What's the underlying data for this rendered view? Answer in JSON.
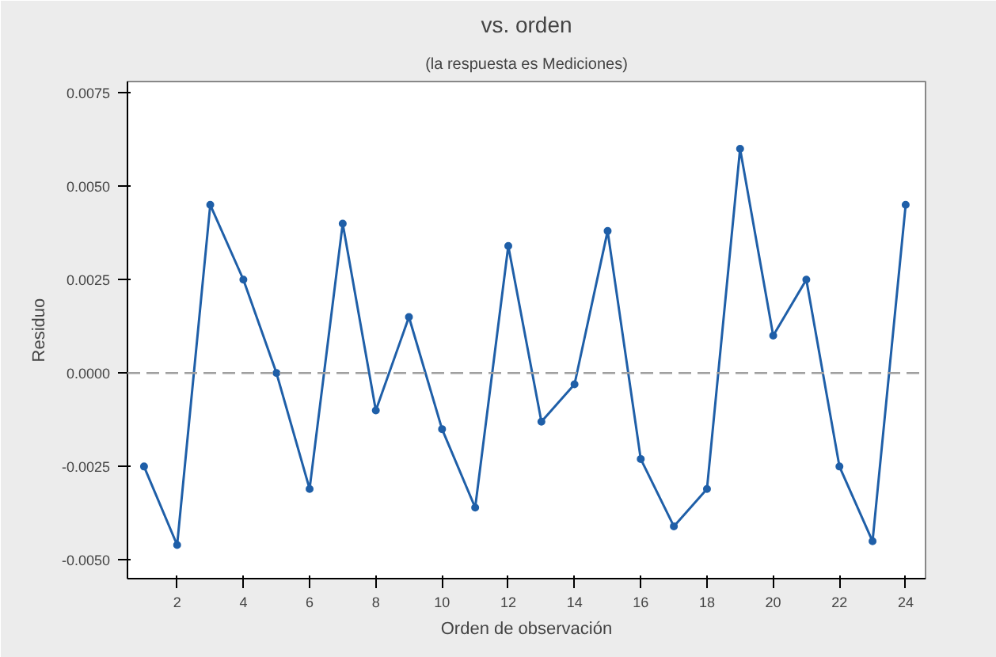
{
  "chart_data": {
    "type": "line",
    "title": "vs. orden",
    "subtitle": "(la respuesta es Mediciones)",
    "xlabel": "Orden de observación",
    "ylabel": "Residuo",
    "x": [
      1,
      2,
      3,
      4,
      5,
      6,
      7,
      8,
      9,
      10,
      11,
      12,
      13,
      14,
      15,
      16,
      17,
      18,
      19,
      20,
      21,
      22,
      23,
      24
    ],
    "series": [
      {
        "color": "#1f5fa8",
        "values": [
          -0.0025,
          -0.0046,
          0.0045,
          0.0025,
          0.0,
          -0.0031,
          0.004,
          -0.001,
          0.0015,
          -0.0015,
          -0.0036,
          0.0034,
          -0.0013,
          -0.0003,
          0.0038,
          -0.0023,
          -0.0041,
          -0.0031,
          0.006,
          0.001,
          0.0025,
          -0.0025,
          -0.0045,
          0.0045
        ]
      }
    ],
    "xlim": [
      0.5,
      24.6
    ],
    "xticks": [
      2,
      4,
      6,
      8,
      10,
      12,
      14,
      16,
      18,
      20,
      22,
      24
    ],
    "ylim": [
      -0.0055,
      0.0078
    ],
    "yticks": [
      {
        "value": -0.005,
        "label": "-0.0050"
      },
      {
        "value": -0.0025,
        "label": "-0.0025"
      },
      {
        "value": 0,
        "label": "0.0000"
      },
      {
        "value": 0.0025,
        "label": "0.0025"
      },
      {
        "value": 0.005,
        "label": "0.0050"
      },
      {
        "value": 0.0075,
        "label": "0.0075"
      }
    ],
    "ref_lines": [
      {
        "axis": "y",
        "value": 0,
        "color": "#a0a0a0",
        "line_style": "dashed"
      }
    ],
    "grid": false,
    "marker": "circle",
    "line_style": "solid"
  }
}
